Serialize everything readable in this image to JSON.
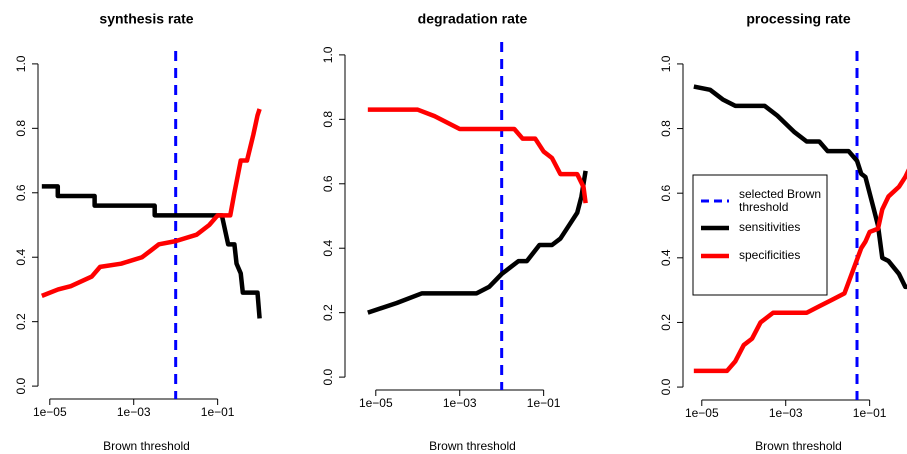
{
  "chart_data": [
    {
      "type": "line",
      "title": "synthesis rate",
      "x_label": "Brown threshold",
      "xlog": true,
      "xlim": [
        3.98e-06,
        1.585
      ],
      "xticks": [
        {
          "value": 1e-05,
          "label": "1e−05"
        },
        {
          "value": 0.001,
          "label": "1e−03"
        },
        {
          "value": 0.1,
          "label": "1e−01"
        }
      ],
      "ylim": [
        -0.04,
        1.04
      ],
      "yticks": [
        {
          "value": 0,
          "label": "0.0"
        },
        0.2,
        0.4,
        0.6,
        0.8,
        {
          "value": 1,
          "label": "1.0"
        }
      ],
      "vline": 0.01,
      "vline_color": "#0000ff",
      "series": [
        {
          "color": "#000000",
          "x": [
            6.46e-06,
            1.55e-05,
            1.55e-05,
            0.000117,
            0.000117,
            0.00316,
            0.00316,
            0.126,
            0.178,
            0.251,
            0.282,
            0.355,
            0.398,
            0.891,
            1.0
          ],
          "values": [
            0.62,
            0.62,
            0.59,
            0.59,
            0.56,
            0.56,
            0.53,
            0.53,
            0.44,
            0.44,
            0.38,
            0.35,
            0.29,
            0.29,
            0.21
          ]
        },
        {
          "color": "#ff0000",
          "x": [
            6.46e-06,
            1.58e-05,
            3.16e-05,
            0.0001,
            0.000158,
            0.000501,
            0.00158,
            0.00251,
            0.00398,
            0.01,
            0.0316,
            0.0631,
            0.1,
            0.2,
            0.251,
            0.355,
            0.501,
            0.708,
            0.891,
            1.0
          ],
          "values": [
            0.28,
            0.3,
            0.31,
            0.34,
            0.37,
            0.38,
            0.4,
            0.42,
            0.44,
            0.45,
            0.47,
            0.5,
            0.53,
            0.53,
            0.6,
            0.7,
            0.7,
            0.78,
            0.84,
            0.86
          ]
        }
      ]
    },
    {
      "type": "line",
      "title": "degradation rate",
      "x_label": "Brown threshold",
      "xlog": true,
      "xlim": [
        3.98e-06,
        1.585
      ],
      "xticks": [
        {
          "value": 1e-05,
          "label": "1e−05"
        },
        {
          "value": 0.001,
          "label": "1e−03"
        },
        {
          "value": 0.1,
          "label": "1e−01"
        }
      ],
      "ylim": [
        -0.04,
        1.04
      ],
      "yticks": [
        {
          "value": 0,
          "label": "0.0"
        },
        0.2,
        0.4,
        0.6,
        0.8,
        {
          "value": 1,
          "label": "1.0"
        }
      ],
      "vline": 0.01,
      "vline_color": "#0000ff",
      "series": [
        {
          "color": "#000000",
          "x": [
            6.46e-06,
            3.16e-05,
            0.000126,
            0.001,
            0.00251,
            0.00501,
            0.01,
            0.0251,
            0.0398,
            0.0794,
            0.158,
            0.251,
            0.398,
            0.631,
            0.794,
            1.0
          ],
          "values": [
            0.2,
            0.23,
            0.26,
            0.26,
            0.26,
            0.28,
            0.32,
            0.36,
            0.36,
            0.41,
            0.41,
            0.43,
            0.47,
            0.51,
            0.56,
            0.64
          ]
        },
        {
          "color": "#ff0000",
          "x": [
            6.46e-06,
            0.0001,
            0.000251,
            0.001,
            0.01,
            0.02,
            0.0316,
            0.0631,
            0.1,
            0.158,
            0.251,
            0.631,
            0.891,
            1.0
          ],
          "values": [
            0.83,
            0.83,
            0.81,
            0.77,
            0.77,
            0.77,
            0.74,
            0.74,
            0.7,
            0.68,
            0.63,
            0.63,
            0.59,
            0.54
          ]
        }
      ]
    },
    {
      "type": "line",
      "title": "processing rate",
      "x_label": "Brown threshold",
      "xlog": true,
      "xlim": [
        3.98e-06,
        1.585
      ],
      "xticks": [
        {
          "value": 1e-05,
          "label": "1e−05"
        },
        {
          "value": 0.001,
          "label": "1e−03"
        },
        {
          "value": 0.1,
          "label": "1e−01"
        }
      ],
      "ylim": [
        -0.04,
        1.04
      ],
      "yticks": [
        {
          "value": 0,
          "label": "0.0"
        },
        0.2,
        0.4,
        0.6,
        0.8,
        {
          "value": 1,
          "label": "1.0"
        }
      ],
      "vline": 0.05,
      "vline_color": "#0000ff",
      "vline_name": "selected Brown threshold",
      "legend": "left",
      "series": [
        {
          "name": "sensitivities",
          "color": "#000000",
          "x": [
            6.46e-06,
            1.58e-05,
            3.16e-05,
            6.31e-05,
            0.000316,
            0.000631,
            0.00158,
            0.00316,
            0.00631,
            0.01,
            0.0316,
            0.0501,
            0.0631,
            0.0794,
            0.1,
            0.126,
            0.158,
            0.2,
            0.282,
            0.501,
            0.708,
            1.0,
            1.12
          ],
          "values": [
            0.93,
            0.92,
            0.89,
            0.87,
            0.87,
            0.84,
            0.79,
            0.76,
            0.76,
            0.73,
            0.73,
            0.7,
            0.66,
            0.65,
            0.6,
            0.55,
            0.5,
            0.4,
            0.39,
            0.35,
            0.31,
            0.31,
            0.26
          ]
        },
        {
          "name": "specificities",
          "color": "#ff0000",
          "x": [
            6.46e-06,
            3.98e-05,
            6.31e-05,
            0.0001,
            0.000158,
            0.000251,
            0.000501,
            0.00316,
            0.00631,
            0.0126,
            0.0251,
            0.0398,
            0.0631,
            0.0794,
            0.1,
            0.158,
            0.2,
            0.282,
            0.501,
            0.708,
            1.0
          ],
          "values": [
            0.05,
            0.05,
            0.08,
            0.13,
            0.15,
            0.2,
            0.23,
            0.23,
            0.25,
            0.27,
            0.29,
            0.36,
            0.43,
            0.45,
            0.48,
            0.49,
            0.55,
            0.59,
            0.62,
            0.65,
            0.69
          ]
        }
      ]
    }
  ]
}
